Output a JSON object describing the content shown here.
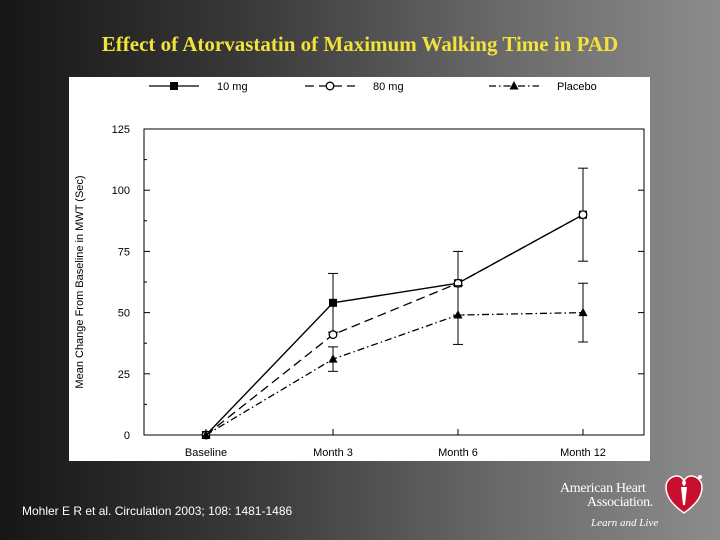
{
  "slide": {
    "title": "Effect of Atorvastatin of Maximum Walking Time in PAD",
    "citation": "Mohler E R et al. Circulation 2003; 108: 1481-1486"
  },
  "logo": {
    "line1": "American Heart",
    "line2": "Association.",
    "tagline": "Learn and Live",
    "icon": "heart-torch-icon",
    "color": "#c8102e"
  },
  "chart_data": {
    "type": "line",
    "title": "",
    "xlabel": "",
    "ylabel": "Mean Change From Baseline in MWT (Sec)",
    "categories": [
      "Baseline",
      "Month 3",
      "Month 6",
      "Month 12"
    ],
    "ylim": [
      0,
      125
    ],
    "yticks": [
      0,
      25,
      50,
      75,
      100,
      125
    ],
    "legend_position": "top",
    "series": [
      {
        "name": "10 mg",
        "values": [
          0,
          54,
          62,
          90
        ],
        "error": [
          0,
          12,
          13,
          19
        ],
        "marker": "square-filled",
        "line": "solid"
      },
      {
        "name": "80 mg",
        "values": [
          0,
          41,
          62,
          90
        ],
        "error": [
          0,
          0,
          0,
          0
        ],
        "marker": "circle-open",
        "line": "dashed"
      },
      {
        "name": "Placebo",
        "values": [
          0,
          31,
          49,
          50
        ],
        "error": [
          0,
          5,
          12,
          12
        ],
        "marker": "triangle-filled",
        "line": "dash-dot"
      }
    ]
  }
}
